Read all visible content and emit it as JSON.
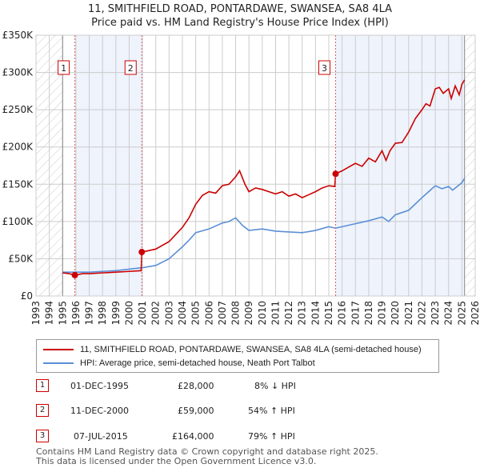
{
  "chart_data": {
    "type": "line",
    "title": "11, SMITHFIELD ROAD, PONTARDAWE, SWANSEA, SA8 4LA",
    "subtitle": "Price paid vs. HM Land Registry's House Price Index (HPI)",
    "ylim": [
      0,
      350000
    ],
    "xlim": [
      1993,
      2026
    ],
    "yticks": [
      {
        "v": 0,
        "l": "£0"
      },
      {
        "v": 50000,
        "l": "£50K"
      },
      {
        "v": 100000,
        "l": "£100K"
      },
      {
        "v": 150000,
        "l": "£150K"
      },
      {
        "v": 200000,
        "l": "£200K"
      },
      {
        "v": 250000,
        "l": "£250K"
      },
      {
        "v": 300000,
        "l": "£300K"
      },
      {
        "v": 350000,
        "l": "£350K"
      }
    ],
    "xticks": [
      "1993",
      "1994",
      "1995",
      "1996",
      "1997",
      "1998",
      "1999",
      "2000",
      "2001",
      "2002",
      "2003",
      "2004",
      "2005",
      "2006",
      "2007",
      "2008",
      "2009",
      "2010",
      "2011",
      "2012",
      "2013",
      "2014",
      "2015",
      "2016",
      "2017",
      "2018",
      "2019",
      "2020",
      "2021",
      "2022",
      "2023",
      "2024",
      "2025",
      "2026"
    ],
    "series": [
      {
        "name": "11, SMITHFIELD ROAD, PONTARDAWE, SWANSEA, SA8 4LA (semi-detached house)",
        "color": "#cc0000",
        "x": [
          1995,
          1995.5,
          1995.92,
          1996.5,
          1997,
          1998,
          1999,
          2000,
          2000.9,
          2000.95,
          2001.5,
          2002,
          2003,
          2004,
          2004.5,
          2005,
          2005.5,
          2006,
          2006.5,
          2007,
          2007.5,
          2008,
          2008.3,
          2008.7,
          2009,
          2009.5,
          2010,
          2010.5,
          2011,
          2011.5,
          2012,
          2012.5,
          2013,
          2013.5,
          2014,
          2014.5,
          2015,
          2015.45,
          2015.51,
          2016,
          2016.5,
          2017,
          2017.5,
          2018,
          2018.5,
          2019,
          2019.3,
          2019.6,
          2020,
          2020.5,
          2021,
          2021.5,
          2022,
          2022.3,
          2022.6,
          2023,
          2023.3,
          2023.6,
          2024,
          2024.2,
          2024.5,
          2024.8,
          2025,
          2025.2
        ],
        "y": [
          31000,
          30000,
          28000,
          30000,
          30000,
          31000,
          32000,
          33000,
          34000,
          59000,
          61000,
          63000,
          73000,
          92000,
          105000,
          123000,
          135000,
          140000,
          138000,
          148000,
          150000,
          160000,
          168000,
          150000,
          140000,
          145000,
          143000,
          140000,
          137000,
          140000,
          134000,
          137000,
          132000,
          136000,
          140000,
          145000,
          148000,
          147000,
          164000,
          168000,
          173000,
          178000,
          174000,
          185000,
          180000,
          195000,
          182000,
          195000,
          205000,
          206000,
          220000,
          238000,
          250000,
          258000,
          255000,
          278000,
          280000,
          272000,
          278000,
          265000,
          282000,
          270000,
          284000,
          290000
        ]
      },
      {
        "name": "HPI: Average price, semi-detached house, Neath Port Talbot",
        "color": "#5b8fd6",
        "x": [
          1995,
          1996,
          1997,
          1998,
          1999,
          2000,
          2001,
          2002,
          2003,
          2004,
          2004.5,
          2005,
          2006,
          2007,
          2007.5,
          2008,
          2008.5,
          2009,
          2010,
          2011,
          2012,
          2013,
          2014,
          2015,
          2015.5,
          2016,
          2017,
          2018,
          2019,
          2019.5,
          2020,
          2021,
          2022,
          2022.5,
          2023,
          2023.5,
          2024,
          2024.3,
          2025,
          2025.2
        ],
        "y": [
          32000,
          32000,
          32000,
          33000,
          34000,
          36000,
          38000,
          41000,
          50000,
          66000,
          75000,
          85000,
          90000,
          98000,
          100000,
          105000,
          95000,
          88000,
          90000,
          87000,
          86000,
          85000,
          88000,
          93000,
          91000,
          93000,
          97000,
          101000,
          106000,
          100000,
          109000,
          115000,
          132000,
          140000,
          148000,
          144000,
          147000,
          142000,
          152000,
          158000
        ]
      }
    ],
    "sales": [
      {
        "id": "1",
        "x": 1995.92,
        "y": 28000
      },
      {
        "id": "2",
        "x": 2000.95,
        "y": 59000
      },
      {
        "id": "3",
        "x": 2015.51,
        "y": 164000
      }
    ]
  },
  "legend": {
    "red": "11, SMITHFIELD ROAD, PONTARDAWE, SWANSEA, SA8 4LA (semi-detached house)",
    "blue": "HPI: Average price, semi-detached house, Neath Port Talbot"
  },
  "table": [
    {
      "id": "1",
      "date": "01-DEC-1995",
      "price": "£28,000",
      "hpi": "8% ↓ HPI"
    },
    {
      "id": "2",
      "date": "11-DEC-2000",
      "price": "£59,000",
      "hpi": "54% ↑ HPI"
    },
    {
      "id": "3",
      "date": "07-JUL-2015",
      "price": "£164,000",
      "hpi": "79% ↑ HPI"
    }
  ],
  "footer": [
    "Contains HM Land Registry data © Crown copyright and database right 2025.",
    "This data is licensed under the Open Government Licence v3.0."
  ]
}
